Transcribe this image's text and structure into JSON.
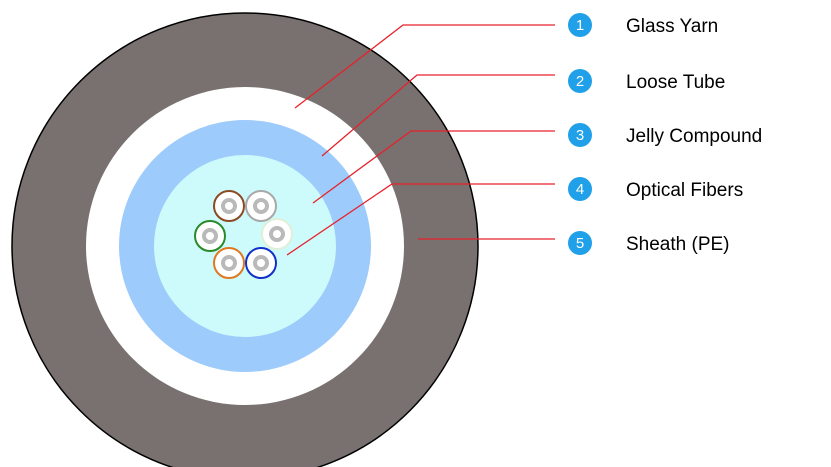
{
  "colors": {
    "sheath": "#787170",
    "glass_yarn": "#ffffff",
    "loose_tube": "#9dcbfb",
    "jelly_compound": "#cdfafa",
    "leader_line": "#e8202a",
    "badge": "#1fa0e8"
  },
  "fiber_colors": [
    "#8b4a22",
    "#a8a8a8",
    "#2a8a2a",
    "#e0f0d8",
    "#e07822",
    "#1030c8"
  ],
  "callouts": [
    {
      "number": "1",
      "label": "Glass Yarn"
    },
    {
      "number": "2",
      "label": "Loose Tube"
    },
    {
      "number": "3",
      "label": "Jelly Compound"
    },
    {
      "number": "4",
      "label": "Optical Fibers"
    },
    {
      "number": "5",
      "label": "Sheath (PE)"
    }
  ]
}
